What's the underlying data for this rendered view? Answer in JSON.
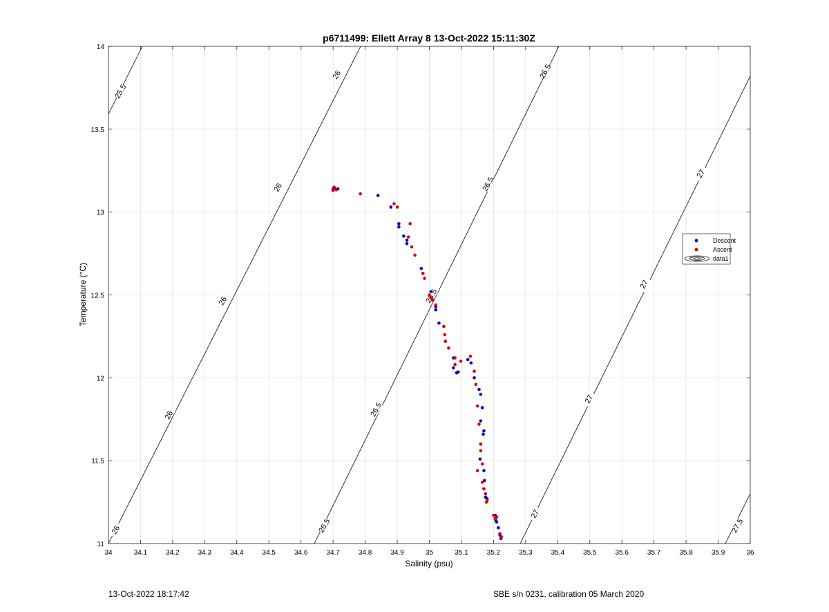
{
  "chart_data": {
    "type": "scatter",
    "title": "p6711499: Ellett Array 8 13-Oct-2022 15:11:30Z",
    "xlabel": "Salinity (psu)",
    "ylabel": "Temperature (°C)",
    "xlim": [
      34,
      36
    ],
    "ylim": [
      11,
      14
    ],
    "xticks": [
      "34",
      "34.1",
      "34.2",
      "34.3",
      "34.4",
      "34.5",
      "34.6",
      "34.7",
      "34.8",
      "34.9",
      "35",
      "35.1",
      "35.2",
      "35.3",
      "35.4",
      "35.5",
      "35.6",
      "35.7",
      "35.8",
      "35.9",
      "36"
    ],
    "yticks": [
      "11",
      "11.5",
      "12",
      "12.5",
      "13",
      "13.5",
      "14"
    ],
    "grid": true,
    "legend_position": "right",
    "legend": [
      "Descent",
      "Ascent",
      "data1"
    ],
    "series": [
      {
        "name": "Descent",
        "color": "#0000cc",
        "points": [
          [
            34.7,
            13.14
          ],
          [
            34.705,
            13.145
          ],
          [
            34.715,
            13.14
          ],
          [
            34.84,
            13.1
          ],
          [
            34.88,
            13.03
          ],
          [
            34.905,
            12.93
          ],
          [
            34.905,
            12.91
          ],
          [
            34.92,
            12.855
          ],
          [
            34.93,
            12.83
          ],
          [
            34.93,
            12.81
          ],
          [
            34.975,
            12.66
          ],
          [
            34.98,
            12.63
          ],
          [
            35.005,
            12.52
          ],
          [
            35.02,
            12.43
          ],
          [
            35.02,
            12.41
          ],
          [
            35.03,
            12.33
          ],
          [
            35.05,
            12.22
          ],
          [
            35.075,
            12.12
          ],
          [
            35.075,
            12.06
          ],
          [
            35.085,
            12.03
          ],
          [
            35.09,
            12.035
          ],
          [
            35.12,
            12.11
          ],
          [
            35.13,
            12.09
          ],
          [
            35.14,
            12.0
          ],
          [
            35.155,
            11.93
          ],
          [
            35.16,
            11.9
          ],
          [
            35.165,
            11.82
          ],
          [
            35.16,
            11.74
          ],
          [
            35.17,
            11.68
          ],
          [
            35.168,
            11.66
          ],
          [
            35.16,
            11.6
          ],
          [
            35.158,
            11.51
          ],
          [
            35.17,
            11.44
          ],
          [
            35.172,
            11.38
          ],
          [
            35.17,
            11.33
          ],
          [
            35.175,
            11.28
          ],
          [
            35.18,
            11.27
          ],
          [
            35.205,
            11.17
          ],
          [
            35.207,
            11.14
          ],
          [
            35.21,
            11.13
          ],
          [
            35.215,
            11.095
          ],
          [
            35.22,
            11.05
          ],
          [
            35.223,
            11.03
          ]
        ]
      },
      {
        "name": "Ascent",
        "color": "#dd0000",
        "points": [
          [
            34.7,
            13.13
          ],
          [
            34.703,
            13.15
          ],
          [
            34.71,
            13.135
          ],
          [
            34.785,
            13.11
          ],
          [
            34.89,
            13.05
          ],
          [
            34.9,
            13.03
          ],
          [
            34.94,
            12.93
          ],
          [
            34.935,
            12.85
          ],
          [
            34.945,
            12.79
          ],
          [
            34.955,
            12.74
          ],
          [
            34.98,
            12.63
          ],
          [
            34.985,
            12.6
          ],
          [
            35.0,
            12.5
          ],
          [
            35.005,
            12.48
          ],
          [
            35.01,
            12.47
          ],
          [
            35.02,
            12.44
          ],
          [
            35.045,
            12.31
          ],
          [
            35.048,
            12.26
          ],
          [
            35.05,
            12.22
          ],
          [
            35.06,
            12.18
          ],
          [
            35.08,
            12.12
          ],
          [
            35.08,
            12.08
          ],
          [
            35.098,
            12.1
          ],
          [
            35.128,
            12.13
          ],
          [
            35.14,
            12.04
          ],
          [
            35.145,
            11.96
          ],
          [
            35.15,
            11.83
          ],
          [
            35.155,
            11.72
          ],
          [
            35.16,
            11.6
          ],
          [
            35.16,
            11.56
          ],
          [
            35.15,
            11.44
          ],
          [
            35.165,
            11.48
          ],
          [
            35.165,
            11.37
          ],
          [
            35.17,
            11.33
          ],
          [
            35.175,
            11.3
          ],
          [
            35.18,
            11.26
          ],
          [
            35.178,
            11.25
          ],
          [
            35.2,
            11.17
          ],
          [
            35.205,
            11.15
          ],
          [
            35.21,
            11.16
          ],
          [
            35.22,
            11.06
          ],
          [
            35.225,
            11.04
          ]
        ]
      }
    ],
    "contours": [
      {
        "label": "25.5",
        "color": "#000000"
      },
      {
        "label": "26",
        "color": "#000000"
      },
      {
        "label": "26.5",
        "color": "#000000"
      },
      {
        "label": "27",
        "color": "#000000"
      },
      {
        "label": "27.5",
        "color": "#000000"
      }
    ]
  },
  "footer": {
    "left": "13-Oct-2022 18:17:42",
    "right": "SBE s/n 0231, calibration 05 March 2020"
  }
}
